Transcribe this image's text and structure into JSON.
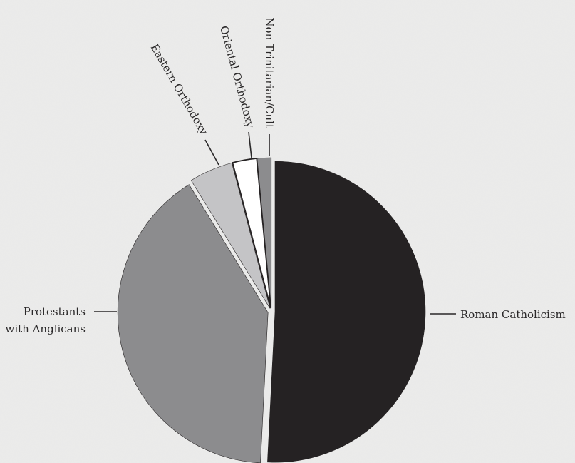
{
  "chart_data": {
    "type": "pie",
    "title": "",
    "categories": [
      "Roman Catholicism",
      "Protestants with Anglicans",
      "Eastern Orthodoxy",
      "Oriental Orthodoxy",
      "Non Trinitarian/Cult"
    ],
    "values": [
      50.8,
      40.4,
      4.7,
      2.6,
      1.5
    ],
    "unit": "%",
    "colors": [
      "#252223",
      "#8c8c8e",
      "#c4c4c6",
      "#ffffff",
      "#8c8c8e"
    ],
    "labels": {
      "roman_catholicism": "Roman Catholicism",
      "protestants_line1": "Protestants",
      "protestants_line2": "with Anglicans",
      "eastern_orthodoxy": "Eastern Orthodoxy",
      "oriental_orthodoxy": "Oriental Orthodoxy",
      "non_trinitarian": "Non Trinitarian/Cult"
    }
  }
}
